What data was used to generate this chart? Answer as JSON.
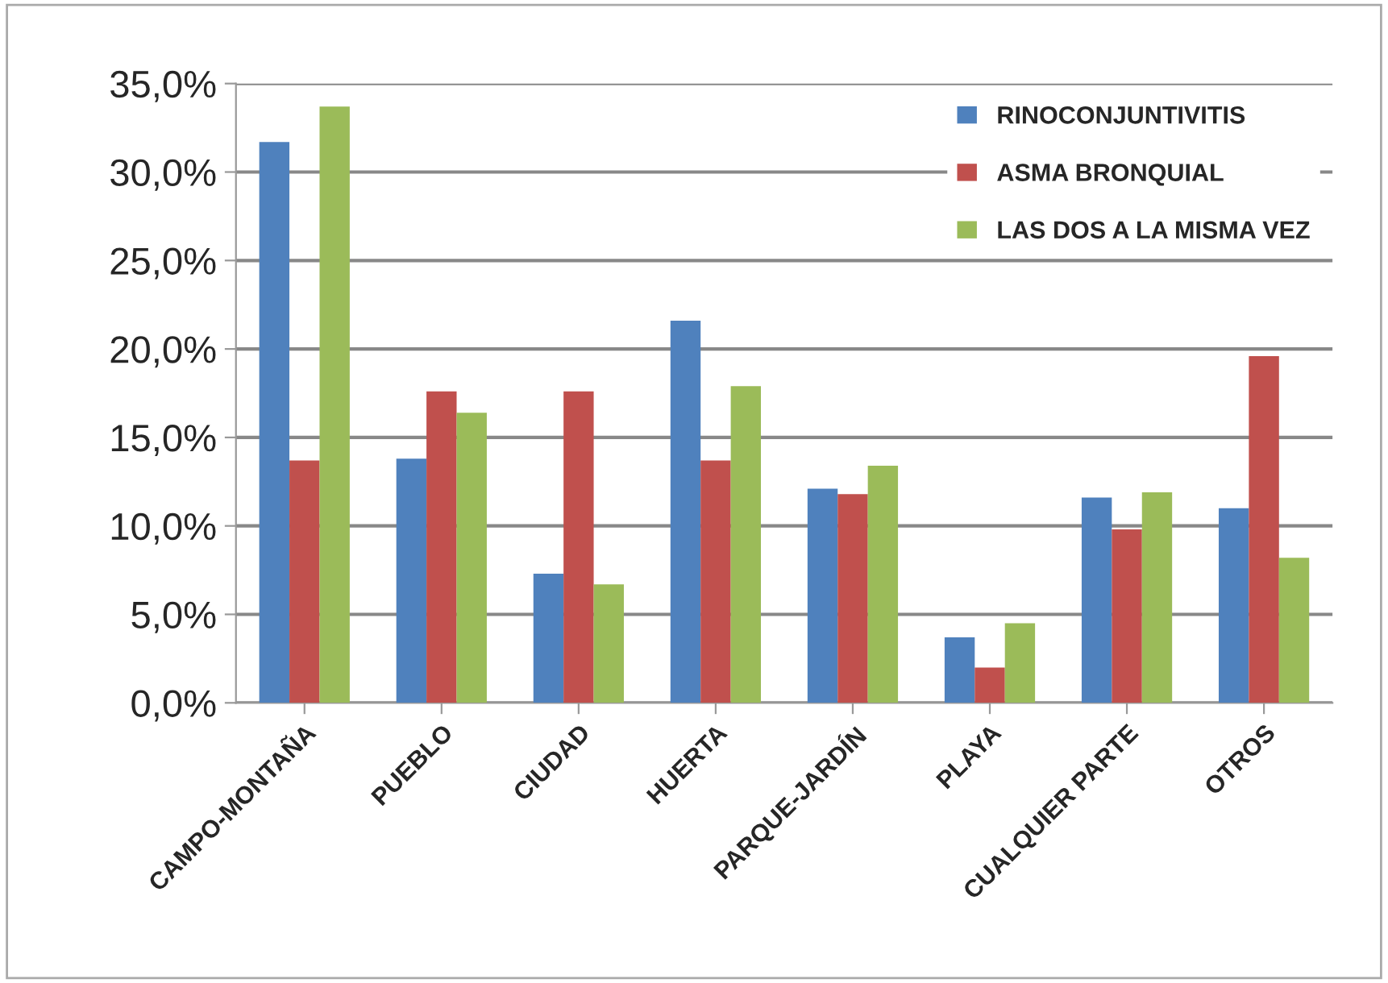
{
  "chart_data": {
    "type": "bar",
    "categories": [
      "CAMPO-MONTAÑA",
      "PUEBLO",
      "CIUDAD",
      "HUERTA",
      "PARQUE-JARDÍN",
      "PLAYA",
      "CUALQUIER PARTE",
      "OTROS"
    ],
    "series": [
      {
        "name": "RINOCONJUNTIVITIS",
        "color": "#4f81bd",
        "values": [
          31.7,
          13.8,
          7.3,
          21.6,
          12.1,
          3.7,
          11.6,
          11.0
        ]
      },
      {
        "name": "ASMA BRONQUIAL",
        "color": "#c0504d",
        "values": [
          13.7,
          17.6,
          17.6,
          13.7,
          11.8,
          2.0,
          9.8,
          19.6
        ]
      },
      {
        "name": "LAS DOS A LA MISMA VEZ",
        "color": "#9bbb59",
        "values": [
          33.7,
          16.4,
          6.7,
          17.9,
          13.4,
          4.5,
          11.9,
          8.2
        ]
      }
    ],
    "ylim": [
      0,
      35
    ],
    "yticks": [
      {
        "value": 0,
        "label": "0,0%"
      },
      {
        "value": 5,
        "label": "5,0%"
      },
      {
        "value": 10,
        "label": "10,0%"
      },
      {
        "value": 15,
        "label": "15,0%"
      },
      {
        "value": 20,
        "label": "20,0%"
      },
      {
        "value": 25,
        "label": "25,0%"
      },
      {
        "value": 30,
        "label": "30,0%"
      },
      {
        "value": 35,
        "label": "35,0%"
      }
    ],
    "grid": "y",
    "legend": "top right"
  }
}
